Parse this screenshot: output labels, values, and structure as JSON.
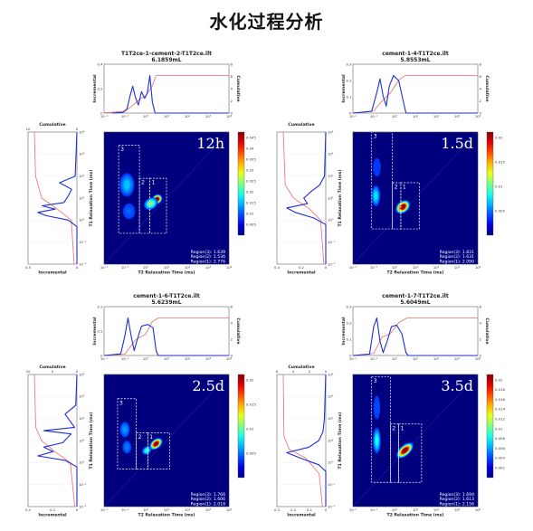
{
  "title": "水化过程分析",
  "chart_data": [
    {
      "type": "heatmap",
      "file": "T1T2ce-1-cement-2-T1T2ce.ilt",
      "volume": "6.1859mL",
      "time_label": "12h",
      "regions": [
        "Region(3): 1.639",
        "Region(2): 1.536",
        "Region(1): 2.776"
      ],
      "xlabel": "T2 Relaxation Time (ms)",
      "ylabel": "T1 Relaxation Time (ms)",
      "top_ylabel_left": "Incremental",
      "top_ylabel_right": "Cumulative",
      "side_xlabel_bottom": "Incremental",
      "side_xlabel_top": "Cumulative",
      "x_ticks": [
        "10⁻²",
        "10⁻¹",
        "10⁰",
        "10¹",
        "10²",
        "10³",
        "10⁴"
      ],
      "y_ticks": [
        "10⁴",
        "10³",
        "10²",
        "10¹",
        "10⁰",
        "10⁻¹",
        "10⁻²"
      ],
      "top_left_ticks": [
        "0.4",
        "0.2",
        "0"
      ],
      "top_right_ticks": [
        "8",
        "6",
        "4",
        "2",
        "0"
      ],
      "side_bottom_ticks": [
        "0.5",
        "0"
      ],
      "side_top_ticks": [
        "10",
        "0"
      ],
      "colorbar_ticks": [
        "0.045",
        "0.04",
        "0.035",
        "0.03",
        "0.025",
        "0.02",
        "0.015",
        "0.01",
        "0.005"
      ],
      "x_range": [
        -2,
        4
      ],
      "y_range": [
        -2,
        4
      ],
      "top_incremental": [
        [
          -1.6,
          0
        ],
        [
          -1.1,
          0.005
        ],
        [
          -0.9,
          0.03
        ],
        [
          -0.75,
          0.13
        ],
        [
          -0.62,
          0.2
        ],
        [
          -0.5,
          0.12
        ],
        [
          -0.35,
          0.06
        ],
        [
          -0.2,
          0.16
        ],
        [
          -0.05,
          0.11
        ],
        [
          0.08,
          0.15
        ],
        [
          0.2,
          0.28
        ],
        [
          0.32,
          0.08
        ],
        [
          0.45,
          0
        ],
        [
          4,
          0
        ]
      ],
      "top_cumulative": [
        [
          -2,
          0.05
        ],
        [
          -1,
          0.3
        ],
        [
          -0.6,
          1.3
        ],
        [
          -0.3,
          2.2
        ],
        [
          0,
          2.8
        ],
        [
          0.3,
          4.3
        ],
        [
          0.5,
          6.1
        ],
        [
          4,
          6.1
        ]
      ],
      "side_incremental": [
        [
          -2,
          0
        ],
        [
          -0.3,
          0
        ],
        [
          0,
          0.1
        ],
        [
          0.2,
          0.35
        ],
        [
          0.35,
          0.45
        ],
        [
          0.5,
          0.25
        ],
        [
          0.65,
          0.4
        ],
        [
          0.8,
          0.15
        ],
        [
          1.1,
          0.1
        ],
        [
          1.4,
          0.06
        ],
        [
          1.7,
          0.2
        ],
        [
          2,
          0.02
        ],
        [
          4,
          0
        ]
      ],
      "side_cumulative": [
        [
          -2,
          0.5
        ],
        [
          0,
          1
        ],
        [
          0.5,
          3.5
        ],
        [
          1,
          6.3
        ],
        [
          2,
          7.4
        ],
        [
          4,
          7.6
        ]
      ],
      "blobs": [
        {
          "x": 0.55,
          "y": 0.95,
          "intensity": 1.0,
          "sx": 0.22,
          "sy": 0.18,
          "rot": -35
        },
        {
          "x": 0.25,
          "y": 0.75,
          "intensity": 0.5,
          "sx": 0.3,
          "sy": 0.22,
          "rot": -35
        },
        {
          "x": -0.9,
          "y": 1.6,
          "intensity": 0.32,
          "sx": 0.3,
          "sy": 0.45,
          "rot": 0
        },
        {
          "x": -0.8,
          "y": 0.4,
          "intensity": 0.22,
          "sx": 0.25,
          "sy": 0.3,
          "rot": 0
        }
      ],
      "boxes": [
        {
          "label": "3",
          "x": [
            -1.3,
            -0.3
          ],
          "y": [
            -0.6,
            3.4
          ]
        },
        {
          "label": "2",
          "x": [
            -0.3,
            0.2
          ],
          "y": [
            -0.6,
            1.9
          ]
        },
        {
          "label": "1",
          "x": [
            0.2,
            1.0
          ],
          "y": [
            -0.6,
            1.9
          ]
        }
      ]
    },
    {
      "type": "heatmap",
      "file": "cement-1-4-T1T2ce.ilt",
      "volume": "5.8553mL",
      "time_label": "1.5d",
      "regions": [
        "Region(3): 1.831",
        "Region(2): 1.631",
        "Region(1): 2.090"
      ],
      "xlabel": "T2 Relaxation Time (ms)",
      "ylabel": "T1 Relaxation Time (ms)",
      "top_ylabel_left": "Incremental",
      "top_ylabel_right": "Cumulative",
      "side_xlabel_bottom": "Incremental",
      "side_xlabel_top": "Cumulative",
      "x_ticks": [
        "10⁻²",
        "10⁻¹",
        "10⁰",
        "10¹",
        "10²",
        "10³",
        "10⁴"
      ],
      "y_ticks": [
        "10⁴",
        "10³",
        "10²",
        "10¹",
        "10⁰",
        "10⁻¹",
        "10⁻²"
      ],
      "top_left_ticks": [
        "0.3",
        "0.2",
        "0.1",
        "0"
      ],
      "top_right_ticks": [
        "8",
        "6",
        "4",
        "2",
        "0"
      ],
      "side_bottom_ticks": [
        "0.4",
        "0.2",
        "0"
      ],
      "side_top_ticks": [],
      "colorbar_ticks": [
        "0.02",
        "0.015",
        "0.01",
        "0.005"
      ],
      "x_range": [
        -2,
        4
      ],
      "y_range": [
        -2,
        4
      ],
      "top_incremental": [
        [
          -2,
          0
        ],
        [
          -1.1,
          0.01
        ],
        [
          -0.85,
          0.12
        ],
        [
          -0.7,
          0.2
        ],
        [
          -0.55,
          0.1
        ],
        [
          -0.4,
          0.04
        ],
        [
          -0.25,
          0.16
        ],
        [
          -0.05,
          0.22
        ],
        [
          0.2,
          0.19
        ],
        [
          0.4,
          0.08
        ],
        [
          0.55,
          0
        ],
        [
          4,
          0
        ]
      ],
      "top_cumulative": [
        [
          -2,
          0
        ],
        [
          -1,
          0.3
        ],
        [
          -0.6,
          1.8
        ],
        [
          -0.2,
          3
        ],
        [
          0.2,
          4.9
        ],
        [
          0.5,
          5.6
        ],
        [
          4,
          5.6
        ]
      ],
      "side_incremental": [
        [
          -2,
          0
        ],
        [
          -0.2,
          0
        ],
        [
          0.1,
          0.1
        ],
        [
          0.35,
          0.25
        ],
        [
          0.55,
          0.32
        ],
        [
          0.75,
          0.15
        ],
        [
          1.0,
          0.18
        ],
        [
          1.3,
          0.12
        ],
        [
          1.6,
          0.05
        ],
        [
          2,
          0.01
        ],
        [
          4,
          0
        ]
      ],
      "side_cumulative": [
        [
          -2,
          0.3
        ],
        [
          0,
          0.8
        ],
        [
          0.5,
          2.5
        ],
        [
          1,
          5
        ],
        [
          1.6,
          6.3
        ],
        [
          4,
          6.6
        ]
      ],
      "blobs": [
        {
          "x": 0.4,
          "y": 0.6,
          "intensity": 1.0,
          "sx": 0.33,
          "sy": 0.22,
          "rot": -40
        },
        {
          "x": -0.9,
          "y": 1.1,
          "intensity": 0.36,
          "sx": 0.18,
          "sy": 0.4,
          "rot": 0
        },
        {
          "x": -0.85,
          "y": 2.4,
          "intensity": 0.18,
          "sx": 0.16,
          "sy": 0.35,
          "rot": 0
        }
      ],
      "boxes": [
        {
          "label": "3",
          "x": [
            -1.1,
            -0.1
          ],
          "y": [
            -0.4,
            4.0
          ]
        },
        {
          "label": "2",
          "x": [
            -0.1,
            0.3
          ],
          "y": [
            -0.4,
            1.7
          ]
        },
        {
          "label": "1",
          "x": [
            0.3,
            1.2
          ],
          "y": [
            -0.4,
            1.7
          ]
        }
      ]
    },
    {
      "type": "heatmap",
      "file": "cement-1-6-T1T2ce.ilt",
      "volume": "5.6239mL",
      "time_label": "2.5d",
      "regions": [
        "Region(3): 1.766",
        "Region(2): 1.606",
        "Region(1): 2.018"
      ],
      "xlabel": "T2 Relaxation Time (ms)",
      "ylabel": "T1 Relaxation Time (ms)",
      "top_ylabel_left": "Incremental",
      "top_ylabel_right": "Cumulative",
      "side_xlabel_bottom": "Incremental",
      "side_xlabel_top": "Cumulative",
      "x_ticks": [
        "10⁻²",
        "10⁻¹",
        "10⁰",
        "10¹",
        "10²",
        "10³",
        "10⁴"
      ],
      "y_ticks": [
        "10⁴",
        "10³",
        "10²",
        "10¹",
        "10⁰",
        "10⁻¹",
        "10⁻²"
      ],
      "top_left_ticks": [
        "0.2",
        "0.1",
        "0"
      ],
      "top_right_ticks": [
        "6",
        "4",
        "2",
        "0"
      ],
      "side_bottom_ticks": [
        "0.4",
        "0.2",
        "0"
      ],
      "side_top_ticks": [
        "10",
        "5",
        "0"
      ],
      "colorbar_ticks": [
        "0.02",
        "0.015",
        "0.01",
        "0.005"
      ],
      "x_range": [
        -2,
        4
      ],
      "y_range": [
        -2,
        4
      ],
      "top_incremental": [
        [
          -2,
          0
        ],
        [
          -1.2,
          0.01
        ],
        [
          -1.0,
          0.12
        ],
        [
          -0.85,
          0.23
        ],
        [
          -0.7,
          0.12
        ],
        [
          -0.55,
          0.03
        ],
        [
          -0.4,
          0.1
        ],
        [
          -0.2,
          0.18
        ],
        [
          0.1,
          0.19
        ],
        [
          0.35,
          0.17
        ],
        [
          0.5,
          0.03
        ],
        [
          0.6,
          0
        ],
        [
          4,
          0
        ]
      ],
      "top_cumulative": [
        [
          -2,
          0
        ],
        [
          -1,
          0.2
        ],
        [
          -0.5,
          2.3
        ],
        [
          0,
          3.2
        ],
        [
          0.3,
          5
        ],
        [
          0.6,
          5.6
        ],
        [
          4,
          5.6
        ]
      ],
      "side_incremental": [
        [
          -2,
          0
        ],
        [
          -0.2,
          0
        ],
        [
          0.1,
          0.1
        ],
        [
          0.3,
          0.33
        ],
        [
          0.5,
          0.2
        ],
        [
          0.7,
          0.28
        ],
        [
          0.9,
          0.12
        ],
        [
          1.3,
          0.05
        ],
        [
          1.45,
          0.28
        ],
        [
          1.6,
          0.02
        ],
        [
          2.2,
          0.1
        ],
        [
          2.6,
          0.01
        ],
        [
          4,
          0
        ]
      ],
      "side_cumulative": [
        [
          -2,
          0.5
        ],
        [
          0,
          1.5
        ],
        [
          0.5,
          5
        ],
        [
          1,
          8
        ],
        [
          1.6,
          9.3
        ],
        [
          4,
          9.6
        ]
      ],
      "blobs": [
        {
          "x": 0.5,
          "y": 0.85,
          "intensity": 1.0,
          "sx": 0.3,
          "sy": 0.18,
          "rot": -40
        },
        {
          "x": 0.05,
          "y": 0.55,
          "intensity": 0.42,
          "sx": 0.2,
          "sy": 0.15,
          "rot": -40
        },
        {
          "x": -1.0,
          "y": 1.5,
          "intensity": 0.28,
          "sx": 0.2,
          "sy": 0.3,
          "rot": 0
        },
        {
          "x": -0.9,
          "y": 0.7,
          "intensity": 0.25,
          "sx": 0.18,
          "sy": 0.25,
          "rot": 0
        }
      ],
      "boxes": [
        {
          "label": "3",
          "x": [
            -1.35,
            -0.45
          ],
          "y": [
            -0.3,
            2.9
          ]
        },
        {
          "label": "2",
          "x": [
            -0.45,
            0.1
          ],
          "y": [
            -0.3,
            1.35
          ]
        },
        {
          "label": "1",
          "x": [
            0.1,
            1.15
          ],
          "y": [
            -0.3,
            1.35
          ]
        }
      ]
    },
    {
      "type": "heatmap",
      "file": "cement-1-7-T1T2ce.ilt",
      "volume": "5.6049mL",
      "time_label": "3.5d",
      "regions": [
        "Region(3): 1.694",
        "Region(2): 1.613",
        "Region(1): 2.156"
      ],
      "xlabel": "T2 Relaxation Time (ms)",
      "ylabel": "T1 Relaxation Time (ms)",
      "top_ylabel_left": "Incremental",
      "top_ylabel_right": "Cumulative",
      "side_xlabel_bottom": "Incremental",
      "side_xlabel_top": "Cumulative",
      "x_ticks": [
        "10⁻²",
        "10⁻¹",
        "10⁰",
        "10¹",
        "10²",
        "10³",
        "10⁴"
      ],
      "y_ticks": [
        "10⁴",
        "10³",
        "10²",
        "10¹",
        "10⁰",
        "10⁻¹",
        "10⁻²"
      ],
      "top_left_ticks": [
        "0.3",
        "0.2",
        "0.1",
        "0"
      ],
      "top_right_ticks": [
        "6",
        "4",
        "2",
        "0"
      ],
      "side_bottom_ticks": [
        "0.3",
        "0.2",
        "0.1",
        "0"
      ],
      "side_top_ticks": [
        "6",
        "4",
        "2",
        "0"
      ],
      "colorbar_ticks": [
        "0.02",
        "0.018",
        "0.016",
        "0.014",
        "0.012",
        "0.01",
        "0.008",
        "0.006",
        "0.004",
        "0.002"
      ],
      "x_range": [
        -2,
        4
      ],
      "y_range": [
        -2,
        4
      ],
      "top_incremental": [
        [
          -2,
          0
        ],
        [
          -1.2,
          0.01
        ],
        [
          -1.0,
          0.2
        ],
        [
          -0.85,
          0.26
        ],
        [
          -0.7,
          0.1
        ],
        [
          -0.55,
          0.02
        ],
        [
          -0.35,
          0.1
        ],
        [
          -0.15,
          0.2
        ],
        [
          0.1,
          0.21
        ],
        [
          0.35,
          0.15
        ],
        [
          0.55,
          0.02
        ],
        [
          0.65,
          0
        ],
        [
          4,
          0
        ]
      ],
      "top_cumulative": [
        [
          -2,
          0
        ],
        [
          -1,
          0.3
        ],
        [
          -0.6,
          2.8
        ],
        [
          -0.2,
          3.3
        ],
        [
          0.2,
          5
        ],
        [
          0.6,
          5.7
        ],
        [
          4,
          5.7
        ]
      ],
      "side_incremental": [
        [
          -2,
          0
        ],
        [
          -0.4,
          0
        ],
        [
          -0.1,
          0.05
        ],
        [
          0.2,
          0.18
        ],
        [
          0.45,
          0.28
        ],
        [
          0.7,
          0.12
        ],
        [
          1.0,
          0.05
        ],
        [
          1.4,
          0.02
        ],
        [
          2,
          0.01
        ],
        [
          4,
          0
        ]
      ],
      "side_cumulative": [
        [
          -2,
          0.5
        ],
        [
          -0.5,
          1
        ],
        [
          0.2,
          3
        ],
        [
          0.6,
          5.5
        ],
        [
          1.2,
          6.3
        ],
        [
          4,
          6.4
        ]
      ],
      "blobs": [
        {
          "x": 0.5,
          "y": 0.55,
          "intensity": 1.0,
          "sx": 0.42,
          "sy": 0.2,
          "rot": -42
        },
        {
          "x": -0.85,
          "y": 1.0,
          "intensity": 0.4,
          "sx": 0.16,
          "sy": 0.5,
          "rot": 0
        },
        {
          "x": -0.85,
          "y": 2.5,
          "intensity": 0.2,
          "sx": 0.14,
          "sy": 0.45,
          "rot": 0
        }
      ],
      "boxes": [
        {
          "label": "3",
          "x": [
            -1.1,
            -0.2
          ],
          "y": [
            -0.9,
            3.9
          ]
        },
        {
          "label": "2",
          "x": [
            -0.2,
            0.2
          ],
          "y": [
            -0.9,
            1.75
          ]
        },
        {
          "label": "1",
          "x": [
            0.2,
            1.3
          ],
          "y": [
            -0.9,
            1.75
          ]
        }
      ]
    }
  ]
}
